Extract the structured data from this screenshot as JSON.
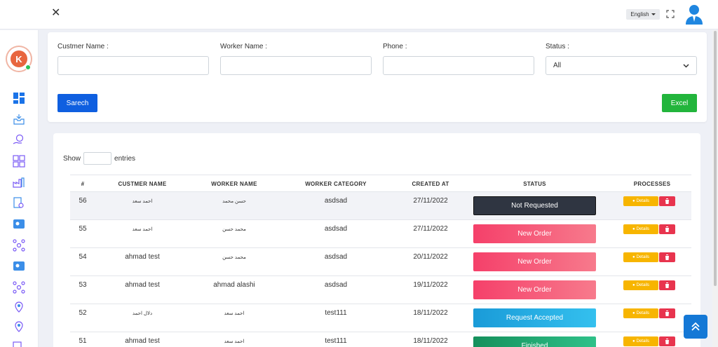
{
  "header": {
    "close_symbol": "✕",
    "language": "English",
    "icons": [
      "close-icon",
      "fullscreen-icon",
      "user-avatar-icon"
    ]
  },
  "sidebar": {
    "logo_letter": "K",
    "icons": [
      "dashboard-icon",
      "inbox-icon",
      "globe-hand-icon",
      "apps-grid-icon",
      "factory-icon",
      "document-search-icon",
      "worker-card-icon",
      "network-icon",
      "worker-card-icon",
      "network-icon",
      "location-pin-icon",
      "location-pin-icon",
      "truck-icon"
    ]
  },
  "filters": {
    "customer_label": "Custmer Name :",
    "worker_label": "Worker Name :",
    "phone_label": "Phone :",
    "status_label": "Status :",
    "status_value": "All",
    "search_button": "Sarech",
    "excel_button": "Excel"
  },
  "table": {
    "show_label": "Show",
    "entries_label": "entries",
    "columns": [
      "#",
      "CUSTMER NAME",
      "WORKER NAME",
      "WORKER CATEGORY",
      "CREATED AT",
      "STATUS",
      "PROCESSES"
    ],
    "details_label": "Details",
    "rows": [
      {
        "id": "56",
        "customer": "احمد سعد",
        "worker": "حسن محمد",
        "category": "asdsad",
        "created": "27/11/2022",
        "status": "Not Requested"
      },
      {
        "id": "55",
        "customer": "احمد سعد",
        "worker": "محمد حسن",
        "category": "asdsad",
        "created": "27/11/2022",
        "status": "New Order"
      },
      {
        "id": "54",
        "customer": "ahmad test",
        "worker": "محمد حسن",
        "category": "asdsad",
        "created": "20/11/2022",
        "status": "New Order"
      },
      {
        "id": "53",
        "customer": "ahmad test",
        "worker": "ahmad alashi",
        "category": "asdsad",
        "created": "19/11/2022",
        "status": "New Order"
      },
      {
        "id": "52",
        "customer": "دلال احمد",
        "worker": "احمد سعد",
        "category": "test111",
        "created": "18/11/2022",
        "status": "Request Accepted"
      },
      {
        "id": "51",
        "customer": "ahmad test",
        "worker": "احمد سعد",
        "category": "test111",
        "created": "18/11/2022",
        "status": "Finished"
      }
    ]
  },
  "colors": {
    "not_requested": "#2f3541",
    "new_order": "#f5506a",
    "request_accepted": "#1fa9e0",
    "finished": "#1fa56a",
    "primary": "#0f5fe0",
    "excel": "#22b53c",
    "details": "#f7b500",
    "delete": "#e8344e"
  }
}
